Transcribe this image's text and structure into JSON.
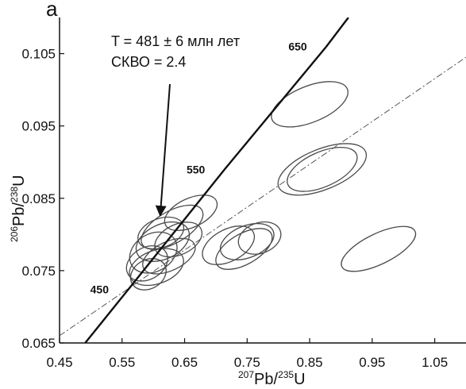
{
  "chart_data": {
    "type": "scatter",
    "subtype": "U-Pb concordia diagram with error ellipses",
    "panel_label": "a",
    "xlabel": {
      "base1": "207",
      "text1": "Pb/",
      "base2": "235",
      "text2": "U"
    },
    "ylabel": {
      "base1": "206",
      "text1": "Pb/",
      "base2": "238",
      "text2": "U"
    },
    "xlim": [
      0.45,
      1.1
    ],
    "ylim": [
      0.065,
      0.11
    ],
    "x_ticks": [
      "0.45",
      "0.55",
      "0.65",
      "0.75",
      "0.85",
      "0.95",
      "1.05"
    ],
    "x_tick_values": [
      0.45,
      0.55,
      0.65,
      0.75,
      0.85,
      0.95,
      1.05
    ],
    "y_ticks": [
      "0.065",
      "0.075",
      "0.085",
      "0.095",
      "0.105"
    ],
    "y_tick_values": [
      0.065,
      0.075,
      0.085,
      0.095,
      0.105
    ],
    "annotation": {
      "line1": "T = 481 ± 6 млн лет",
      "line2": "СКВО = 2.4"
    },
    "annotation_arrow_to": {
      "x": 0.611,
      "y": 0.0826
    },
    "concordia": {
      "style": "solid",
      "age_labels": [
        {
          "label": "450",
          "x": 0.56,
          "y": 0.0724
        },
        {
          "label": "550",
          "x": 0.714,
          "y": 0.089
        },
        {
          "label": "650",
          "x": 0.877,
          "y": 0.106
        }
      ],
      "points": [
        [
          0.491,
          0.065
        ],
        [
          0.56,
          0.0724
        ],
        [
          0.714,
          0.089
        ],
        [
          0.877,
          0.106
        ],
        [
          0.912,
          0.11
        ]
      ]
    },
    "reference_line": {
      "style": "dash-dot",
      "points": [
        [
          0.45,
          0.066
        ],
        [
          1.1,
          0.1045
        ]
      ]
    },
    "ellipses": [
      {
        "cx": 0.63,
        "cy": 0.081,
        "rx": 0.055,
        "ry": 0.0022,
        "angle": 30
      },
      {
        "cx": 0.615,
        "cy": 0.079,
        "rx": 0.045,
        "ry": 0.0024,
        "angle": 25
      },
      {
        "cx": 0.6,
        "cy": 0.0775,
        "rx": 0.04,
        "ry": 0.0026,
        "angle": 30
      },
      {
        "cx": 0.59,
        "cy": 0.076,
        "rx": 0.035,
        "ry": 0.0022,
        "angle": 30
      },
      {
        "cx": 0.605,
        "cy": 0.0755,
        "rx": 0.045,
        "ry": 0.0023,
        "angle": 20
      },
      {
        "cx": 0.625,
        "cy": 0.077,
        "rx": 0.045,
        "ry": 0.002,
        "angle": 25
      },
      {
        "cx": 0.612,
        "cy": 0.0802,
        "rx": 0.038,
        "ry": 0.002,
        "angle": 20
      },
      {
        "cx": 0.64,
        "cy": 0.0793,
        "rx": 0.04,
        "ry": 0.0021,
        "angle": 25
      },
      {
        "cx": 0.592,
        "cy": 0.0745,
        "rx": 0.03,
        "ry": 0.002,
        "angle": 30
      },
      {
        "cx": 0.66,
        "cy": 0.083,
        "rx": 0.045,
        "ry": 0.002,
        "angle": 25
      },
      {
        "cx": 0.72,
        "cy": 0.0785,
        "rx": 0.045,
        "ry": 0.0022,
        "angle": 28
      },
      {
        "cx": 0.75,
        "cy": 0.079,
        "rx": 0.045,
        "ry": 0.0022,
        "angle": 22
      },
      {
        "cx": 0.745,
        "cy": 0.078,
        "rx": 0.05,
        "ry": 0.0021,
        "angle": 30
      },
      {
        "cx": 0.77,
        "cy": 0.0795,
        "rx": 0.035,
        "ry": 0.0021,
        "angle": 20
      },
      {
        "cx": 0.85,
        "cy": 0.098,
        "rx": 0.065,
        "ry": 0.0025,
        "angle": 22
      },
      {
        "cx": 0.87,
        "cy": 0.089,
        "rx": 0.075,
        "ry": 0.0028,
        "angle": 22
      },
      {
        "cx": 0.87,
        "cy": 0.089,
        "rx": 0.06,
        "ry": 0.0024,
        "angle": 24
      },
      {
        "cx": 0.96,
        "cy": 0.078,
        "rx": 0.065,
        "ry": 0.0021,
        "angle": 26
      }
    ]
  }
}
